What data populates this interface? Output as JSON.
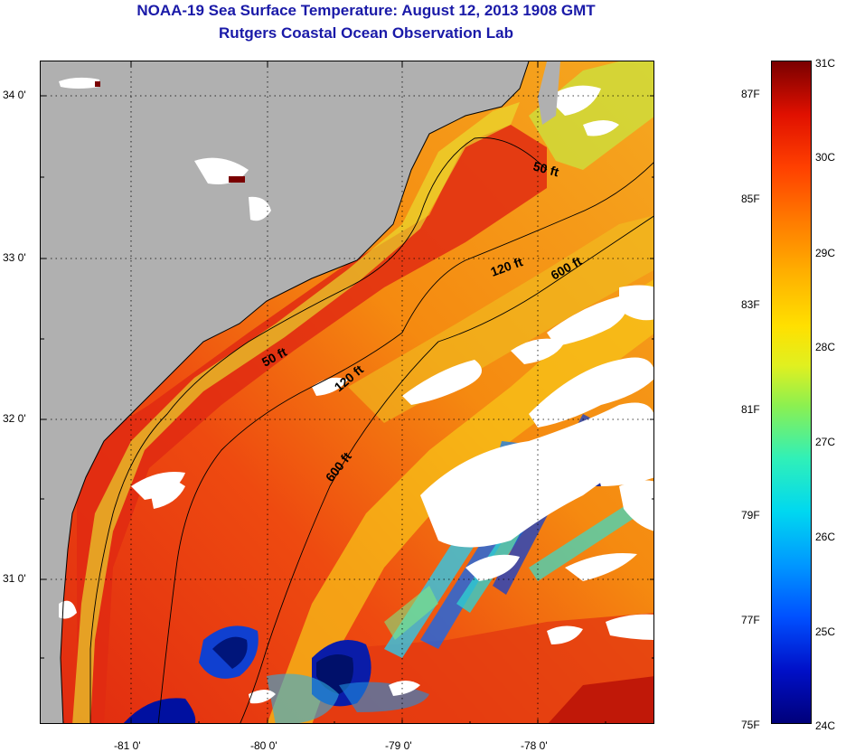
{
  "title": {
    "line1": "NOAA-19 Sea Surface Temperature:  August 12, 2013 1908 GMT",
    "line2": "Rutgers Coastal Ocean Observation Lab"
  },
  "map": {
    "lat_ticks": [
      "34 0'",
      "33 0'",
      "32 0'",
      "31 0'"
    ],
    "lon_ticks": [
      "-81 0'",
      "-80 0'",
      "-79 0'",
      "-78 0'"
    ],
    "isobath_labels": [
      "50 ft",
      "120 ft",
      "600 ft",
      "50 ft",
      "120 ft",
      "600 ft"
    ]
  },
  "colorbar": {
    "celsius": [
      "31C",
      "30C",
      "29C",
      "28C",
      "27C",
      "26C",
      "25C",
      "24C"
    ],
    "fahrenheit": [
      "87F",
      "85F",
      "83F",
      "81F",
      "79F",
      "77F",
      "75F"
    ]
  },
  "colors": {
    "title": "#1a1aa8",
    "land": "#b0b0b0",
    "cloud": "#ffffff",
    "warm": "#e83010",
    "cold": "#0010c8"
  }
}
